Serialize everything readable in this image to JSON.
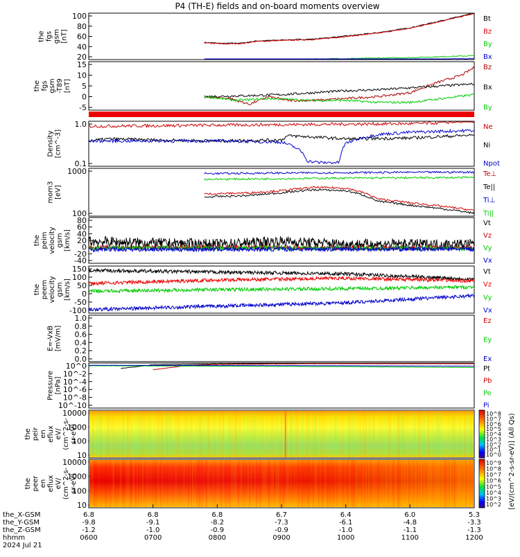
{
  "title": "P4 (TH-E) fields and on-board moments overview",
  "date_label": "2024 Jul 21",
  "ephemeris": {
    "rows": [
      {
        "name": "the_X-GSM",
        "values": [
          "6.8",
          "6.8",
          "6.8",
          "6.7",
          "6.4",
          "6.0",
          "5.3"
        ]
      },
      {
        "name": "the_Y-GSM",
        "values": [
          "-9.8",
          "-9.1",
          "-8.2",
          "-7.3",
          "-6.1",
          "-4.8",
          "-3.3"
        ]
      },
      {
        "name": "the_Z-GSM",
        "values": [
          "-1.2",
          "-1.0",
          "-0.9",
          "-0.9",
          "-1.0",
          "-1.1",
          "-1.3"
        ]
      },
      {
        "name": "hhmm",
        "values": [
          "0600",
          "0700",
          "0800",
          "0900",
          "1000",
          "1100",
          "1200"
        ]
      }
    ]
  },
  "colorbar": {
    "label": "[eV/(cm^2-s-sr-eV)] (All Qs)",
    "upper_ticks": [
      "10^8",
      "10^7",
      "10^6",
      "10^5",
      "10^4",
      "10^3",
      "10^2",
      "10^1",
      "10^0"
    ],
    "lower_ticks": [
      "10^9",
      "10^8",
      "10^7",
      "10^6",
      "10^5",
      "10^4",
      "10^3",
      "10^2"
    ]
  },
  "chart_data": [
    {
      "type": "line",
      "panel": "fgs_gsm",
      "ylabel_lines": [
        "the",
        "fgs",
        "gsm",
        "[nT]"
      ],
      "yticks": [
        "100",
        "80",
        "60",
        "40",
        "20"
      ],
      "ylim": [
        10,
        105
      ],
      "x_range_hours": [
        6,
        12
      ],
      "series": [
        {
          "name": "Bt",
          "color": "#000000",
          "x": [
            7.8,
            8.1,
            8.4,
            8.6,
            9.0,
            9.5,
            10.0,
            10.5,
            11.0,
            11.5,
            12.0
          ],
          "values": [
            45,
            43,
            44,
            48,
            50,
            52,
            58,
            65,
            75,
            90,
            105
          ]
        },
        {
          "name": "Bz",
          "color": "#dd0000",
          "x": [
            7.8,
            8.1,
            8.4,
            8.6,
            9.0,
            9.5,
            10.0,
            10.5,
            11.0,
            11.5,
            12.0
          ],
          "values": [
            44,
            42,
            43,
            47,
            49,
            51,
            57,
            64,
            74,
            89,
            104
          ]
        },
        {
          "name": "By",
          "color": "#00cc00",
          "x": [
            7.8,
            8.5,
            9.5,
            10.5,
            11.0,
            11.5,
            12.0
          ],
          "values": [
            9,
            9,
            11,
            13,
            14,
            16,
            18
          ]
        },
        {
          "name": "Bx",
          "color": "#0000dd",
          "x": [
            7.8,
            9.0,
            10.0,
            11.0,
            12.0
          ],
          "values": [
            3,
            4,
            6,
            9,
            12
          ]
        }
      ]
    },
    {
      "type": "line",
      "panel": "fgs_gsm_detrended",
      "ylabel_lines": [
        "the",
        "fgs",
        "gsm",
        "-T89",
        "[nT]"
      ],
      "yticks": [
        "15",
        "10",
        "5",
        "0",
        "-5"
      ],
      "ylim": [
        -7,
        18
      ],
      "series": [
        {
          "name": "Bz",
          "color": "#aa0000",
          "x": [
            7.8,
            8.2,
            8.5,
            8.8,
            9.1,
            9.5,
            10.0,
            10.5,
            11.0,
            11.4,
            11.8,
            12.0
          ],
          "values": [
            0,
            -1,
            -4,
            0,
            -2,
            -2,
            -1,
            0,
            2,
            7,
            11,
            15
          ]
        },
        {
          "name": "Bx",
          "color": "#000000",
          "x": [
            7.8,
            8.5,
            9.0,
            9.5,
            10.0,
            10.5,
            11.0,
            11.5,
            12.0
          ],
          "values": [
            0,
            0.5,
            1,
            2,
            3,
            3.5,
            4.5,
            5.5,
            6.5
          ]
        },
        {
          "name": "By",
          "color": "#00cc00",
          "x": [
            7.8,
            8.3,
            8.8,
            9.5,
            10.0,
            10.5,
            11.0,
            11.5,
            12.0
          ],
          "values": [
            0,
            -2,
            -1,
            -2,
            -2,
            -3,
            -3,
            -1,
            1
          ]
        }
      ]
    },
    {
      "type": "line",
      "panel": "density",
      "ylabel_lines": [
        "Density",
        "[cm^-3]"
      ],
      "yticks": [
        "1.0",
        "0.1"
      ],
      "ylim": [
        0.05,
        3
      ],
      "log": true,
      "series": [
        {
          "name": "Ne",
          "color": "#cc0000",
          "x": [
            6.0,
            7.0,
            8.0,
            9.0,
            10.0,
            11.0,
            11.5,
            11.8,
            12.0
          ],
          "values": [
            1.9,
            2.0,
            2.1,
            2.2,
            2.3,
            2.4,
            2.6,
            3.0,
            2.8
          ]
        },
        {
          "name": "Ni",
          "color": "#000000",
          "x": [
            6.0,
            6.3,
            7.0,
            8.0,
            9.0,
            9.1,
            10.0,
            11.0,
            12.0
          ],
          "values": [
            0.5,
            0.6,
            0.55,
            0.5,
            0.55,
            0.8,
            0.6,
            0.65,
            0.85
          ]
        },
        {
          "name": "Npot",
          "color": "#0000cc",
          "x": [
            6.0,
            7.0,
            8.0,
            9.0,
            9.3,
            9.4,
            9.6,
            9.9,
            10.0,
            10.5,
            11.0,
            12.0
          ],
          "values": [
            0.5,
            0.5,
            0.5,
            0.45,
            0.2,
            0.08,
            0.07,
            0.07,
            0.4,
            0.9,
            1.1,
            1.3
          ]
        }
      ]
    },
    {
      "type": "line",
      "panel": "temperature",
      "ylabel_lines": [
        "mom3",
        "[eV]"
      ],
      "yticks": [
        "1000",
        "100"
      ],
      "ylim": [
        100,
        9000
      ],
      "log": true,
      "series": [
        {
          "name": "Te⊥",
          "color": "#cc0000",
          "x": [
            7.8,
            8.5,
            9.0,
            9.5,
            10.0,
            10.5,
            11.0,
            11.5,
            12.0
          ],
          "values": [
            800,
            900,
            1100,
            1500,
            1400,
            500,
            350,
            250,
            170
          ]
        },
        {
          "name": "Te||",
          "color": "#000000",
          "x": [
            7.8,
            8.5,
            9.0,
            9.5,
            10.0,
            10.5,
            11.0,
            11.5,
            12.0
          ],
          "values": [
            600,
            700,
            900,
            1200,
            1100,
            400,
            280,
            200,
            130
          ]
        },
        {
          "name": "Ti⊥",
          "color": "#0000cc",
          "x": [
            7.8,
            9.0,
            10.0,
            11.0,
            12.0
          ],
          "values": [
            5500,
            5800,
            6000,
            6200,
            6300
          ]
        },
        {
          "name": "Ti||",
          "color": "#00cc00",
          "x": [
            7.8,
            9.0,
            10.0,
            11.0,
            12.0
          ],
          "values": [
            3200,
            3400,
            3600,
            3700,
            3800
          ]
        }
      ]
    },
    {
      "type": "line",
      "panel": "peim_velocity",
      "ylabel_lines": [
        "the",
        "peim",
        "velocity",
        "gsm",
        "[km/s]"
      ],
      "yticks": [
        "80",
        "60",
        "40",
        "20",
        "0",
        "-20",
        "-40"
      ],
      "ylim": [
        -40,
        85
      ],
      "series": [
        {
          "name": "Vt",
          "color": "#000000",
          "x": [
            6.0,
            7.0,
            8.0,
            9.0,
            10.0,
            11.0,
            12.0
          ],
          "values": [
            20,
            15,
            12,
            20,
            12,
            12,
            12
          ]
        },
        {
          "name": "Vz",
          "color": "#cc0000",
          "x": [
            6.0,
            12.0
          ],
          "values": [
            3,
            2
          ]
        },
        {
          "name": "Vy",
          "color": "#00cc00",
          "x": [
            6.0,
            12.0
          ],
          "values": [
            2,
            1
          ]
        },
        {
          "name": "Vx",
          "color": "#0000cc",
          "x": [
            6.0,
            12.0
          ],
          "values": [
            -2,
            -1
          ]
        }
      ]
    },
    {
      "type": "line",
      "panel": "peem_velocity",
      "ylabel_lines": [
        "the",
        "peem",
        "velocity",
        "gsm",
        "[km/s]"
      ],
      "yticks": [
        "150",
        "100",
        "50",
        "0",
        "-50",
        "-100"
      ],
      "ylim": [
        -120,
        150
      ],
      "series": [
        {
          "name": "Vt",
          "color": "#000000",
          "x": [
            6.0,
            8.0,
            10.0,
            12.0
          ],
          "values": [
            125,
            115,
            105,
            75
          ]
        },
        {
          "name": "Vz",
          "color": "#ee0000",
          "x": [
            6.0,
            8.0,
            10.0,
            12.0
          ],
          "values": [
            50,
            70,
            80,
            65
          ]
        },
        {
          "name": "Vy",
          "color": "#00cc00",
          "x": [
            6.0,
            8.0,
            10.0,
            12.0
          ],
          "values": [
            5,
            15,
            20,
            30
          ]
        },
        {
          "name": "Vx",
          "color": "#0000cc",
          "x": [
            6.0,
            8.0,
            10.0,
            11.5,
            12.0
          ],
          "values": [
            -100,
            -80,
            -60,
            -30,
            -20
          ]
        }
      ]
    },
    {
      "type": "line",
      "panel": "efield",
      "ylabel_lines": [
        "E=-VxB",
        "[mV/m]"
      ],
      "yticks": [
        "1.0",
        "0.8",
        "0.6",
        "0.4",
        "0.2",
        "0.0"
      ],
      "ylim": [
        0,
        1
      ],
      "series": [
        {
          "name": "Ez",
          "color": "#cc0000",
          "x": [],
          "values": []
        },
        {
          "name": "Ey",
          "color": "#00cc00",
          "x": [],
          "values": []
        },
        {
          "name": "Ex",
          "color": "#0000cc",
          "x": [],
          "values": []
        }
      ]
    },
    {
      "type": "line",
      "panel": "pressure",
      "ylabel_lines": [
        "Pressure",
        "[nPa]"
      ],
      "yticks": [
        "10^0",
        "10^-2",
        "10^-4",
        "10^-6",
        "10^-8",
        "10^-10"
      ],
      "ylim": [
        -10,
        0
      ],
      "log": true,
      "series": [
        {
          "name": "Pt",
          "color": "#000000",
          "x": [
            6.5,
            7.0,
            8.0,
            9.0,
            10.0,
            11.0,
            12.0
          ],
          "values": [
            -1.2,
            -0.4,
            -0.2,
            -0.1,
            0,
            0.1,
            0.2
          ]
        },
        {
          "name": "Pb",
          "color": "#cc0000",
          "x": [
            7.0,
            7.5,
            8.0,
            9.0,
            10.0,
            11.0,
            12.0
          ],
          "values": [
            -1.5,
            -0.6,
            -0.3,
            -0.2,
            -0.1,
            0,
            0.1
          ]
        },
        {
          "name": "Pe",
          "color": "#00cc00",
          "x": [
            6.0,
            8.0,
            10.0,
            12.0
          ],
          "values": [
            -0.6,
            -0.7,
            -0.8,
            -1.0
          ]
        },
        {
          "name": "Pi",
          "color": "#0000cc",
          "x": [
            6.0,
            8.0,
            10.0,
            12.0
          ],
          "values": [
            -0.5,
            -0.55,
            -0.6,
            -0.7
          ]
        }
      ]
    },
    {
      "type": "heatmap",
      "panel": "peir_eflux",
      "ylabel_lines": [
        "the",
        "peir",
        "en",
        "eflux",
        "eV/",
        "(cm^2-s-",
        "sr-eV)"
      ],
      "yticks": [
        "10000",
        "1000",
        "100",
        "10"
      ]
    },
    {
      "type": "heatmap",
      "panel": "peer_eflux",
      "ylabel_lines": [
        "the",
        "peer",
        "en",
        "eflux",
        "eV/",
        "(cm^2-s-",
        "sr-eV)"
      ],
      "yticks": [
        "10000",
        "1000",
        "100",
        "10"
      ]
    }
  ]
}
